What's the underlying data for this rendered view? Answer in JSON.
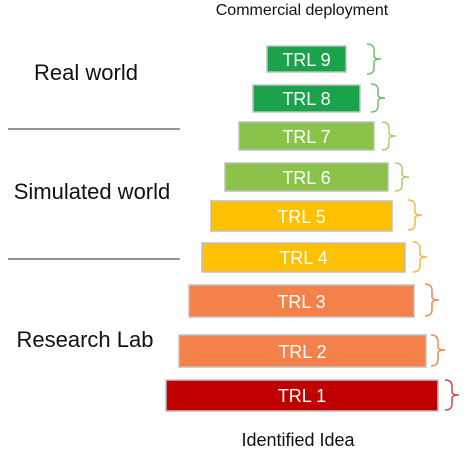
{
  "top_caption": "Commercial deployment",
  "bottom_caption": "Identified Idea",
  "zones": [
    {
      "label": "Real world"
    },
    {
      "label": "Simulated world"
    },
    {
      "label": "Research Lab"
    }
  ],
  "levels": [
    {
      "label": "TRL 9",
      "color": "#1aa34a",
      "bracket_color": "#6abf6e"
    },
    {
      "label": "TRL 8",
      "color": "#1aa34a",
      "bracket_color": "#6abf6e"
    },
    {
      "label": "TRL 7",
      "color": "#8bc34a",
      "bracket_color": "#a5d06a"
    },
    {
      "label": "TRL 6",
      "color": "#8bc34a",
      "bracket_color": "#a5d06a"
    },
    {
      "label": "TRL 5",
      "color": "#ffc000",
      "bracket_color": "#f5b942"
    },
    {
      "label": "TRL 4",
      "color": "#ffc000",
      "bracket_color": "#f5b942"
    },
    {
      "label": "TRL 3",
      "color": "#f4814a",
      "bracket_color": "#ef8a55"
    },
    {
      "label": "TRL 2",
      "color": "#f4814a",
      "bracket_color": "#ef8a55"
    },
    {
      "label": "TRL 1",
      "color": "#c00000",
      "bracket_color": "#d04a4a"
    }
  ]
}
